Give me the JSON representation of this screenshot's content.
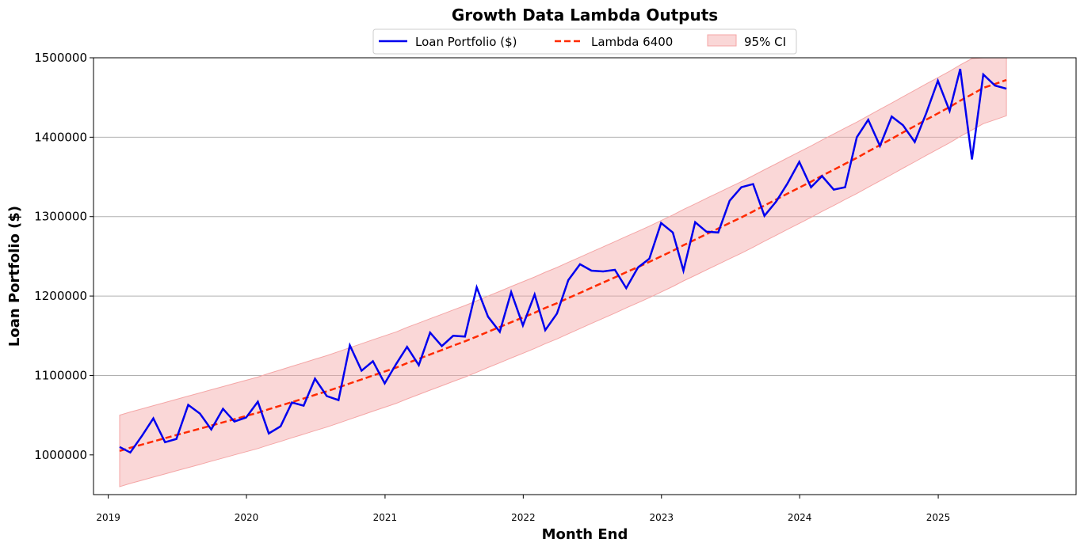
{
  "chart_data": {
    "type": "line",
    "title": "Growth Data Lambda Outputs",
    "xlabel": "Month End",
    "ylabel": "Loan Portfolio ($)",
    "ylim": [
      950000,
      1500000
    ],
    "xlim": [
      "2018-11-23",
      "2025-12-31"
    ],
    "grid": "horizontal",
    "legend_position": "top-center",
    "yticks": [
      1000000,
      1100000,
      1200000,
      1300000,
      1400000,
      1500000
    ],
    "ytick_labels": [
      "1000000",
      "1100000",
      "1200000",
      "1300000",
      "1400000",
      "1500000"
    ],
    "xticks": [
      "2019-01-01",
      "2020-01-01",
      "2021-01-01",
      "2022-01-01",
      "2023-01-01",
      "2024-01-01",
      "2025-01-01"
    ],
    "xtick_labels": [
      "2019",
      "2020",
      "2021",
      "2022",
      "2023",
      "2024",
      "2025"
    ],
    "colors": {
      "series": "#0000ee",
      "trend": "#ff2a00",
      "ci": "#f4a6a6"
    },
    "legend": {
      "series": "Loan Portfolio ($)",
      "trend": "Lambda 6400",
      "ci": "95% CI"
    },
    "x": [
      "2019-01-31",
      "2019-02-28",
      "2019-03-31",
      "2019-04-30",
      "2019-05-31",
      "2019-06-30",
      "2019-07-31",
      "2019-08-31",
      "2019-09-30",
      "2019-10-31",
      "2019-11-30",
      "2019-12-31",
      "2020-01-31",
      "2020-02-29",
      "2020-03-31",
      "2020-04-30",
      "2020-05-31",
      "2020-06-30",
      "2020-07-31",
      "2020-08-31",
      "2020-09-30",
      "2020-10-31",
      "2020-11-30",
      "2020-12-31",
      "2021-01-31",
      "2021-02-28",
      "2021-03-31",
      "2021-04-30",
      "2021-05-31",
      "2021-06-30",
      "2021-07-31",
      "2021-08-31",
      "2021-09-30",
      "2021-10-31",
      "2021-11-30",
      "2021-12-31",
      "2022-01-31",
      "2022-02-28",
      "2022-03-31",
      "2022-04-30",
      "2022-05-31",
      "2022-06-30",
      "2022-07-31",
      "2022-08-31",
      "2022-09-30",
      "2022-10-31",
      "2022-11-30",
      "2022-12-31",
      "2023-01-31",
      "2023-02-28",
      "2023-03-31",
      "2023-04-30",
      "2023-05-31",
      "2023-06-30",
      "2023-07-31",
      "2023-08-31",
      "2023-09-30",
      "2023-10-31",
      "2023-11-30",
      "2023-12-31",
      "2024-01-31",
      "2024-02-29",
      "2024-03-31",
      "2024-04-30",
      "2024-05-31",
      "2024-06-30",
      "2024-07-31",
      "2024-08-31",
      "2024-09-30",
      "2024-10-31",
      "2024-11-30",
      "2024-12-31",
      "2025-01-31",
      "2025-02-28",
      "2025-03-31",
      "2025-04-30",
      "2025-05-31",
      "2025-06-30"
    ],
    "series": [
      {
        "name": "Loan Portfolio ($)",
        "values": [
          1010000,
          1003000,
          1024000,
          1046000,
          1016000,
          1020000,
          1063000,
          1052000,
          1032000,
          1058000,
          1042000,
          1047000,
          1067000,
          1027000,
          1036000,
          1066000,
          1062000,
          1096000,
          1074000,
          1069000,
          1138000,
          1106000,
          1118000,
          1090000,
          1115000,
          1136000,
          1113000,
          1154000,
          1137000,
          1150000,
          1149000,
          1211000,
          1174000,
          1155000,
          1205000,
          1163000,
          1202000,
          1157000,
          1178000,
          1220000,
          1240000,
          1232000,
          1231000,
          1233000,
          1210000,
          1236000,
          1247000,
          1292000,
          1280000,
          1232000,
          1293000,
          1281000,
          1280000,
          1320000,
          1337000,
          1341000,
          1301000,
          1319000,
          1342000,
          1369000,
          1337000,
          1351000,
          1334000,
          1337000,
          1400000,
          1422000,
          1389000,
          1426000,
          1415000,
          1394000,
          1430000,
          1471000,
          1433000,
          1486000,
          1372000,
          1479000,
          1465000,
          1461000
        ]
      },
      {
        "name": "Lambda 6400",
        "values": [
          1005000,
          1009000,
          1013000,
          1017000,
          1021000,
          1025000,
          1029000,
          1033000,
          1037000,
          1041000,
          1045000,
          1049000,
          1053000,
          1057500,
          1062000,
          1066500,
          1071000,
          1075500,
          1080000,
          1085000,
          1090000,
          1095000,
          1100000,
          1105000,
          1110000,
          1115500,
          1121000,
          1126500,
          1132000,
          1137500,
          1143000,
          1149000,
          1155000,
          1161000,
          1167000,
          1173000,
          1179000,
          1185000,
          1191000,
          1197500,
          1204000,
          1210500,
          1217000,
          1223500,
          1230000,
          1236500,
          1243000,
          1250000,
          1257000,
          1264000,
          1271000,
          1278000,
          1285000,
          1292000,
          1299000,
          1306500,
          1314000,
          1321500,
          1329000,
          1336500,
          1344000,
          1351500,
          1359000,
          1366500,
          1374000,
          1382000,
          1390000,
          1398000,
          1406000,
          1414000,
          1422000,
          1430000,
          1438000,
          1446000,
          1454000,
          1462000,
          1467000,
          1472000
        ]
      }
    ],
    "ci": {
      "name": "95% CI",
      "half_width_start": 45000,
      "half_width_end": 45000
    }
  }
}
